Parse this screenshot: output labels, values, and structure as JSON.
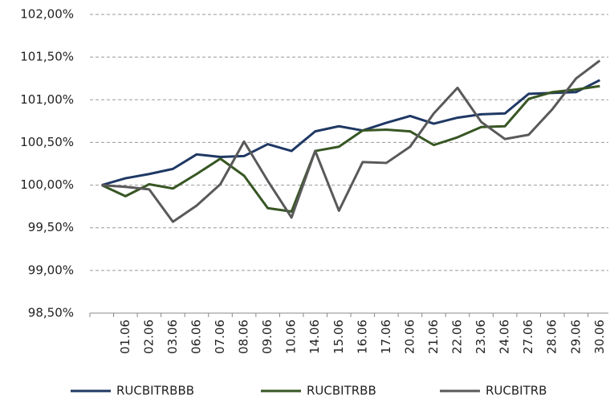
{
  "chart_data": {
    "type": "line",
    "categories": [
      null,
      "01.06",
      "02.06",
      "03.06",
      "06.06",
      "07.06",
      "08.06",
      "09.06",
      "10.06",
      "14.06",
      "15.06",
      "16.06",
      "17.06",
      "20.06",
      "21.06",
      "22.06",
      "23.06",
      "24.06",
      "27.06",
      "28.06",
      "29.06",
      "30.06"
    ],
    "series": [
      {
        "name": "RUCBITRBBB",
        "color": "#1f3864",
        "values": [
          100.0,
          100.08,
          100.13,
          100.19,
          100.36,
          100.33,
          100.34,
          100.48,
          100.4,
          100.63,
          100.69,
          100.64,
          100.73,
          100.81,
          100.72,
          100.79,
          100.83,
          100.84,
          101.07,
          101.08,
          101.09,
          101.23
        ]
      },
      {
        "name": "RUCBITRBB",
        "color": "#375623",
        "values": [
          100.0,
          99.87,
          100.01,
          99.96,
          100.13,
          100.31,
          100.11,
          99.73,
          99.69,
          100.4,
          100.45,
          100.64,
          100.65,
          100.63,
          100.47,
          100.56,
          100.68,
          100.69,
          101.01,
          101.09,
          101.12,
          101.16
        ]
      },
      {
        "name": "RUCBITRB",
        "color": "#595959",
        "values": [
          100.0,
          99.98,
          99.95,
          99.57,
          99.76,
          100.01,
          100.51,
          100.05,
          99.62,
          100.4,
          99.7,
          100.27,
          100.26,
          100.45,
          100.84,
          101.14,
          100.74,
          100.54,
          100.59,
          100.89,
          101.25,
          101.46
        ]
      }
    ],
    "ylim": [
      98.5,
      102
    ],
    "yticks": [
      {
        "value": 98.5,
        "label": "98,50%"
      },
      {
        "value": 99,
        "label": "99,00%"
      },
      {
        "value": 99.5,
        "label": "99,50%"
      },
      {
        "value": 100,
        "label": "100,00%"
      },
      {
        "value": 100.5,
        "label": "100,50%"
      },
      {
        "value": 101,
        "label": "101,00%"
      },
      {
        "value": 101.5,
        "label": "101,50%"
      },
      {
        "value": 102,
        "label": "102,00%"
      }
    ],
    "grid": true,
    "legend": "bottom"
  }
}
